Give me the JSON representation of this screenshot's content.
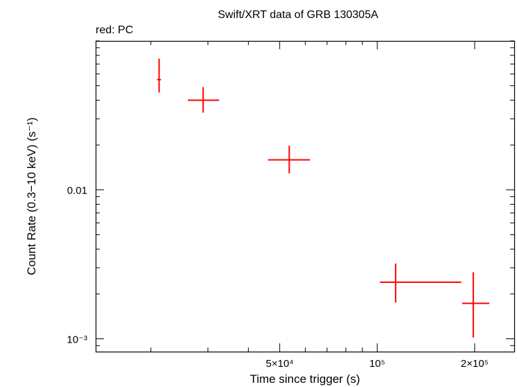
{
  "chart_data": {
    "type": "scatter",
    "title": "Swift/XRT data of GRB 130305A",
    "subtitle": "red: PC",
    "xlabel": "Time since trigger (s)",
    "ylabel": "Count Rate (0.3−10 keV) (s⁻¹)",
    "x_scale": "log",
    "y_scale": "log",
    "xlim": [
      13500,
      265000
    ],
    "ylim": [
      0.00082,
      0.1
    ],
    "x_ticks": [
      {
        "value": 50000,
        "label": "5×10⁴"
      },
      {
        "value": 100000,
        "label": "10⁵"
      },
      {
        "value": 200000,
        "label": "2×10⁵"
      }
    ],
    "y_ticks": [
      {
        "value": 0.01,
        "label": "0.01"
      },
      {
        "value": 0.001,
        "label": "10⁻³"
      }
    ],
    "series": [
      {
        "color": "#ff0000",
        "points": [
          {
            "x": 21200,
            "y": 0.055,
            "xerr": [
              20900,
              21500
            ],
            "yerr": [
              0.045,
              0.076
            ]
          },
          {
            "x": 29000,
            "y": 0.04,
            "xerr": [
              26000,
              32500
            ],
            "yerr": [
              0.033,
              0.049
            ]
          },
          {
            "x": 53500,
            "y": 0.0159,
            "xerr": [
              46000,
              62000
            ],
            "yerr": [
              0.0129,
              0.0198
            ]
          },
          {
            "x": 114000,
            "y": 0.0024,
            "xerr": [
              102000,
              182000
            ],
            "yerr": [
              0.00175,
              0.0032
            ]
          },
          {
            "x": 198000,
            "y": 0.00173,
            "xerr": [
              183000,
              222000
            ],
            "yerr": [
              0.00102,
              0.0028
            ]
          }
        ]
      }
    ]
  }
}
